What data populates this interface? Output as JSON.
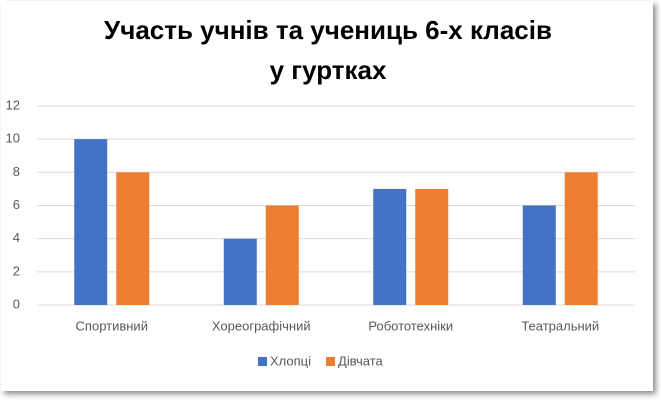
{
  "chart_data": {
    "type": "bar",
    "title": [
      "Участь учнів та учениць 6-х класів",
      "у гуртках"
    ],
    "categories": [
      "Спортивний",
      "Хореографічний",
      "Робототехніки",
      "Театральний"
    ],
    "series": [
      {
        "name": "Хлопці",
        "color": "#4472c4",
        "values": [
          10,
          4,
          7,
          6
        ]
      },
      {
        "name": "Дівчата",
        "color": "#ed7d31",
        "values": [
          8,
          6,
          7,
          8
        ]
      }
    ],
    "ylim": [
      0,
      12
    ],
    "yticks": [
      0,
      2,
      4,
      6,
      8,
      10,
      12
    ],
    "grid": true,
    "legend": "bottom"
  }
}
